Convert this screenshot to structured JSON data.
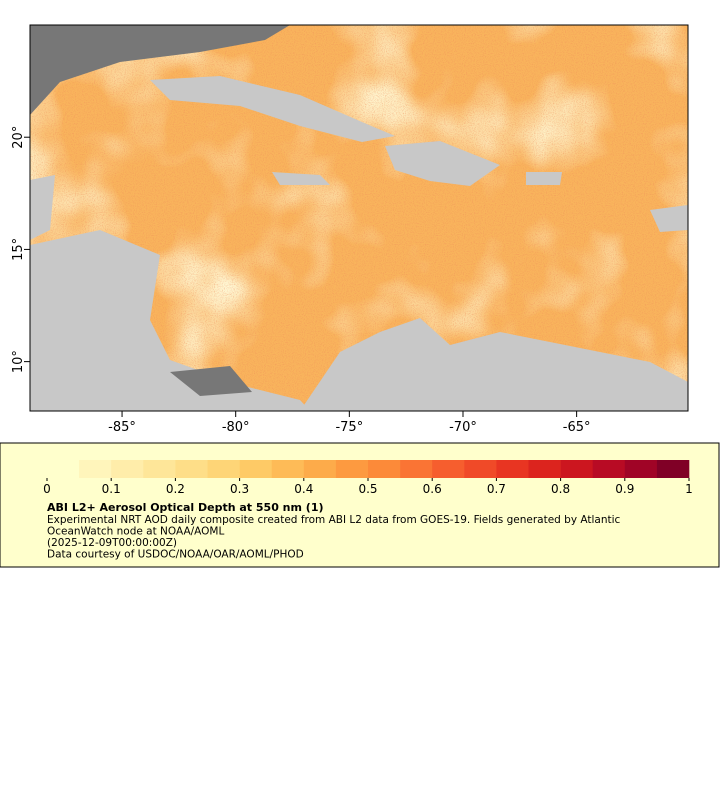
{
  "map": {
    "xlim": [
      -89.05,
      -60.1
    ],
    "ylim": [
      7.8,
      25
    ],
    "xticks": [
      {
        "value": -85,
        "label": "-85°"
      },
      {
        "value": -80,
        "label": "-80°"
      },
      {
        "value": -75,
        "label": "-75°"
      },
      {
        "value": -70,
        "label": "-70°"
      },
      {
        "value": -65,
        "label": "-65°"
      }
    ],
    "yticks": [
      {
        "value": 10,
        "label": "10°"
      },
      {
        "value": 15,
        "label": "15°"
      },
      {
        "value": 20,
        "label": "20°"
      }
    ],
    "colorbar": {
      "lim": [
        0,
        1
      ],
      "ticks": [
        0,
        0.1,
        0.2,
        0.3,
        0.4,
        0.5,
        0.6,
        0.7,
        0.8,
        0.9,
        1
      ],
      "colors": [
        "#ffffcc",
        "#fff5bb",
        "#ffedaa",
        "#fee699",
        "#fede88",
        "#fed577",
        "#feca66",
        "#febb57",
        "#fdab4a",
        "#fd9a40",
        "#fc8a39",
        "#fa7434",
        "#f65e2e",
        "#f04a28",
        "#e83522",
        "#dc241e",
        "#cc161f",
        "#b80b24",
        "#a00426",
        "#800026"
      ]
    },
    "title": "ABI L2+ Aerosol Optical Depth at 550 nm (1)",
    "description": [
      "Experimental NRT AOD daily composite created from ABI L2 data from GOES-19. Fields generated by Atlantic",
      "OceanWatch node at NOAA/AOML",
      "(2025-12-09T00:00:00Z)",
      "Data courtesy of USDOC/NOAA/OAR/AOML/PHOD"
    ]
  }
}
